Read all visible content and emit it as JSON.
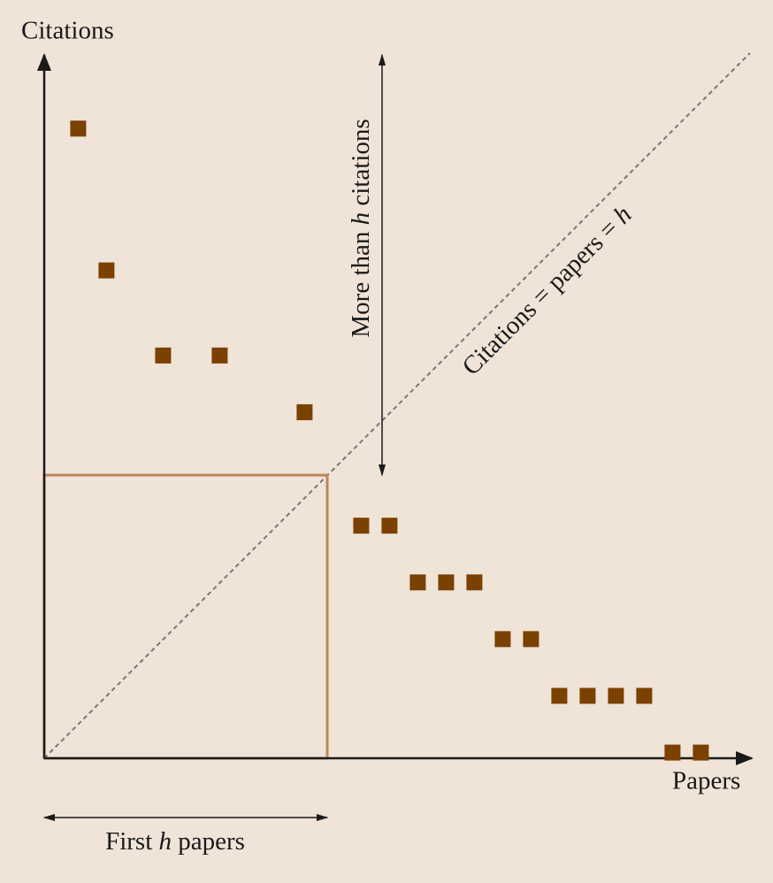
{
  "chart_data": {
    "type": "scatter",
    "x_label": "Papers",
    "y_label": "Citations",
    "x": [
      1,
      2,
      4,
      6,
      9,
      11,
      12,
      13,
      14,
      15,
      16,
      17,
      18,
      19,
      20,
      21,
      22,
      23
    ],
    "values": [
      22,
      17,
      14,
      14,
      12,
      8,
      8,
      6,
      6,
      6,
      4,
      4,
      2,
      2,
      2,
      2,
      0,
      0
    ],
    "color": "#7a4100",
    "xlim": [
      -0.2,
      24.8
    ],
    "ylim": [
      -0.2,
      24.6
    ],
    "annotations": {
      "vertical": [
        "More than ",
        "h",
        " citations"
      ],
      "diagonal": [
        "Citations = papers = ",
        "h"
      ],
      "horizontal": [
        "First ",
        "h",
        " papers"
      ]
    }
  }
}
